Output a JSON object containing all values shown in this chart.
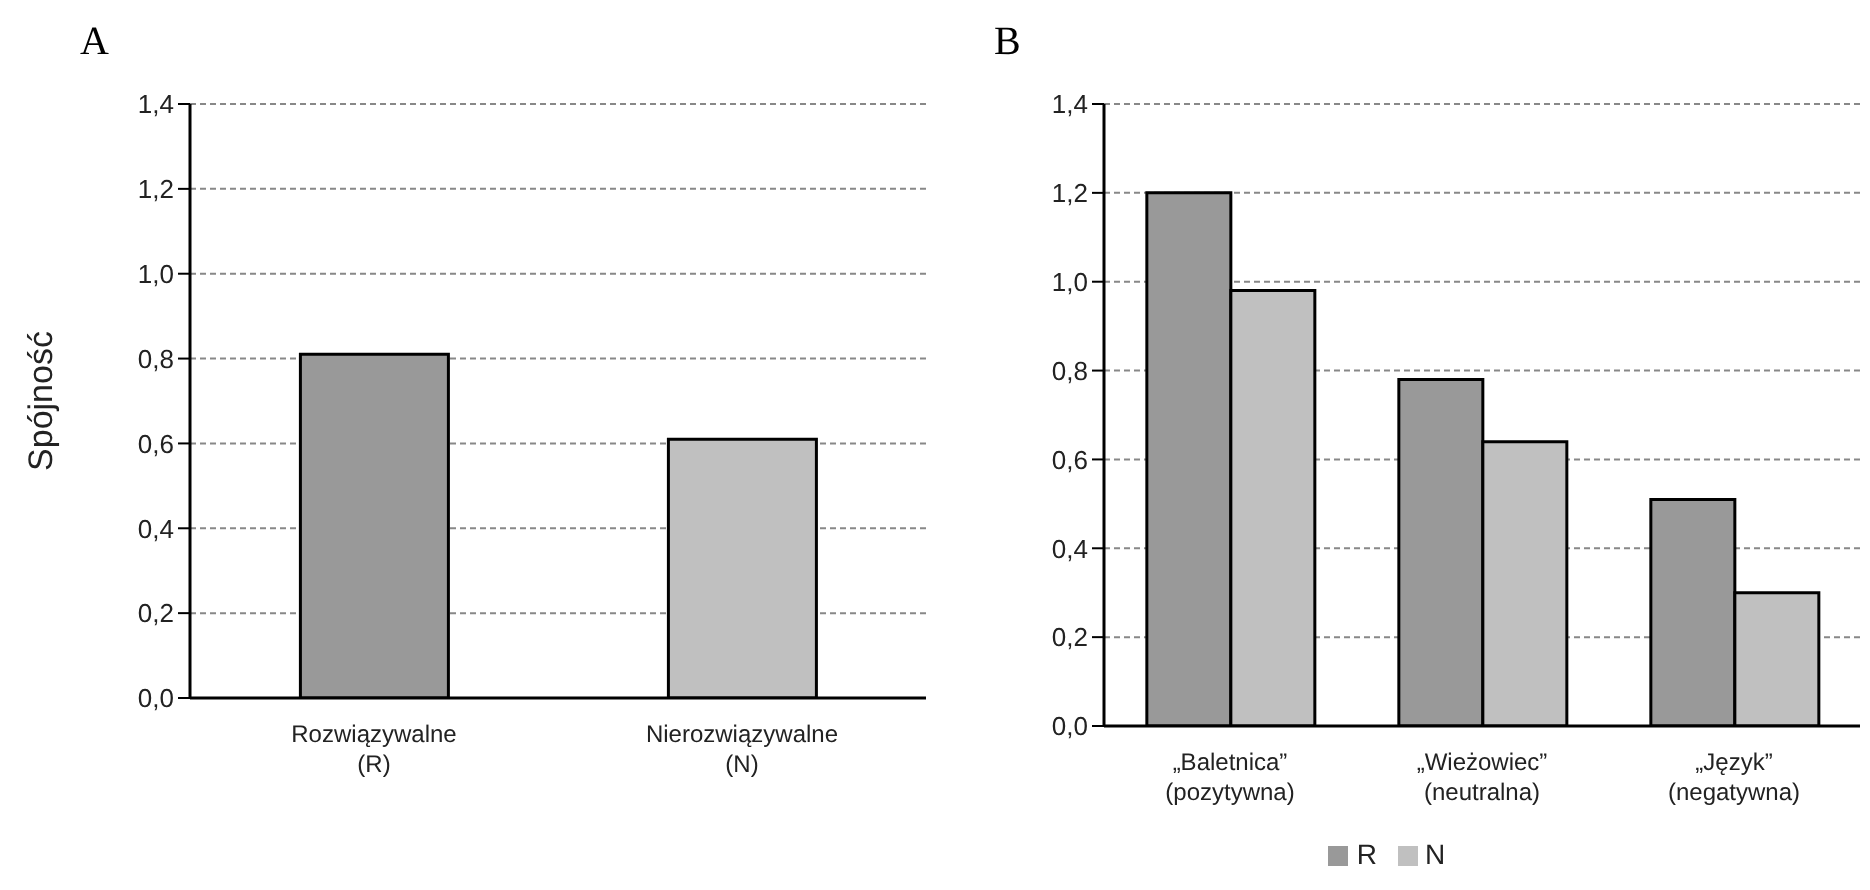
{
  "chart_data": [
    {
      "type": "bar",
      "title": "A",
      "ylabel": "Spójność",
      "categories": [
        "Rozwiązywalne\n(R)",
        "Nierozwiązywalne\n(N)"
      ],
      "values": [
        0.81,
        0.61
      ],
      "colors": [
        "#999999",
        "#c0c0c0"
      ],
      "ylim": [
        0,
        1.4
      ],
      "yticks": [
        {
          "value": 0,
          "label": "0,0"
        },
        {
          "value": 0.2,
          "label": "0,2"
        },
        {
          "value": 0.4,
          "label": "0,4"
        },
        {
          "value": 0.6,
          "label": "0,6"
        },
        {
          "value": 0.8,
          "label": "0,8"
        },
        {
          "value": 1,
          "label": "1,0"
        },
        {
          "value": 1.2,
          "label": "1,2"
        },
        {
          "value": 1.4,
          "label": "1,4"
        }
      ],
      "grid": "y",
      "legend": false
    },
    {
      "type": "bar",
      "title": "B",
      "categories": [
        "„Baletnica”\n(pozytywna)",
        "„Wieżowiec”\n(neutralna)",
        "„Język”\n(negatywna)"
      ],
      "series": [
        {
          "name": "R",
          "color": "#999999",
          "values": [
            1.2,
            0.78,
            0.51
          ]
        },
        {
          "name": "N",
          "color": "#c0c0c0",
          "values": [
            0.98,
            0.64,
            0.3
          ]
        }
      ],
      "ylim": [
        0,
        1.4
      ],
      "yticks": [
        {
          "value": 0,
          "label": "0,0"
        },
        {
          "value": 0.2,
          "label": "0,2"
        },
        {
          "value": 0.4,
          "label": "0,4"
        },
        {
          "value": 0.6,
          "label": "0,6"
        },
        {
          "value": 0.8,
          "label": "0,8"
        },
        {
          "value": 1,
          "label": "1,0"
        },
        {
          "value": 1.2,
          "label": "1,2"
        },
        {
          "value": 1.4,
          "label": "1,4"
        }
      ],
      "grid": "y",
      "legend": "bottom"
    }
  ]
}
